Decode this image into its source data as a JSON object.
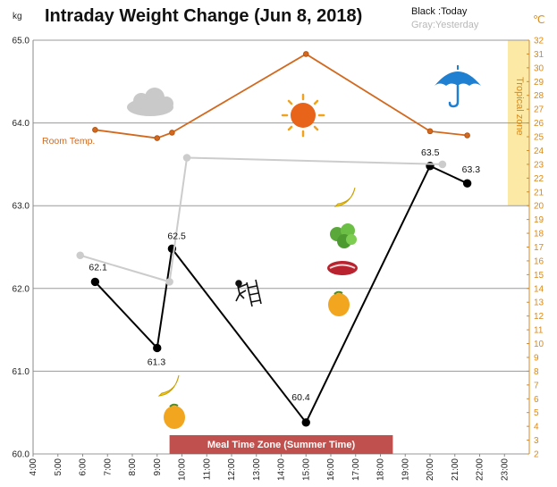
{
  "chart_data": {
    "type": "line",
    "title": "Intraday Weight Change (Jun 8, 2018)",
    "y_unit": "kg",
    "right_unit": "℃",
    "legend": {
      "today": "Black :Today",
      "yesterday": "Gray:Yesterday"
    },
    "ylim": [
      60.0,
      65.0
    ],
    "y_ticks": [
      "60.0",
      "61.0",
      "62.0",
      "63.0",
      "64.0",
      "65.0"
    ],
    "xlim": [
      4,
      24
    ],
    "x_ticks": [
      "4:00",
      "5:00",
      "6:00",
      "7:00",
      "8:00",
      "9:00",
      "10:00",
      "11:00",
      "12:00",
      "13:00",
      "14:00",
      "15:00",
      "16:00",
      "17:00",
      "18:00",
      "19:00",
      "20:00",
      "21:00",
      "22:00",
      "23:00"
    ],
    "right_ylim": [
      2,
      32
    ],
    "right_ticks": [
      "2",
      "3",
      "4",
      "5",
      "6",
      "7",
      "8",
      "9",
      "10",
      "11",
      "12",
      "13",
      "14",
      "15",
      "16",
      "17",
      "18",
      "19",
      "20",
      "21",
      "22",
      "23",
      "24",
      "25",
      "26",
      "27",
      "28",
      "29",
      "30",
      "31",
      "32"
    ],
    "right_axis_label": "Tropical zone",
    "series": [
      {
        "name": "Today",
        "color": "#000000",
        "points": [
          {
            "x": 6.5,
            "y": 62.08,
            "label": "62.1"
          },
          {
            "x": 9.0,
            "y": 61.28,
            "label": "61.3"
          },
          {
            "x": 9.6,
            "y": 62.48,
            "label": "62.5"
          },
          {
            "x": 15.0,
            "y": 60.38,
            "label": "60.4"
          },
          {
            "x": 20.0,
            "y": 63.48,
            "label": "63.5"
          },
          {
            "x": 21.5,
            "y": 63.27,
            "label": "63.3"
          }
        ]
      },
      {
        "name": "Yesterday",
        "color": "#cccccc",
        "points": [
          {
            "x": 5.9,
            "y": 62.4
          },
          {
            "x": 9.5,
            "y": 62.08
          },
          {
            "x": 10.2,
            "y": 63.58
          },
          {
            "x": 20.5,
            "y": 63.5
          }
        ]
      },
      {
        "name": "Room Temp.",
        "color": "#d2691e",
        "axis": "right",
        "points": [
          {
            "x": 6.5,
            "y": 25.5
          },
          {
            "x": 9.0,
            "y": 24.9
          },
          {
            "x": 9.6,
            "y": 25.3
          },
          {
            "x": 15.0,
            "y": 31.0
          },
          {
            "x": 20.0,
            "y": 25.4
          },
          {
            "x": 21.5,
            "y": 25.1
          }
        ]
      }
    ],
    "room_temp_label": "Room Temp.",
    "meal_zone": {
      "label": "Meal Time Zone (Summer Time)",
      "x_start": 9.5,
      "x_end": 18.5,
      "color": "#c0504d"
    },
    "tropical_zone": {
      "from": 20,
      "to": 32,
      "color": "#fde9a6"
    },
    "icons": [
      "cloud-icon",
      "sun-icon",
      "umbrella-icon",
      "climber-icon",
      "banana-icon",
      "lettuce-icon",
      "meat-icon",
      "mango-icon"
    ]
  }
}
